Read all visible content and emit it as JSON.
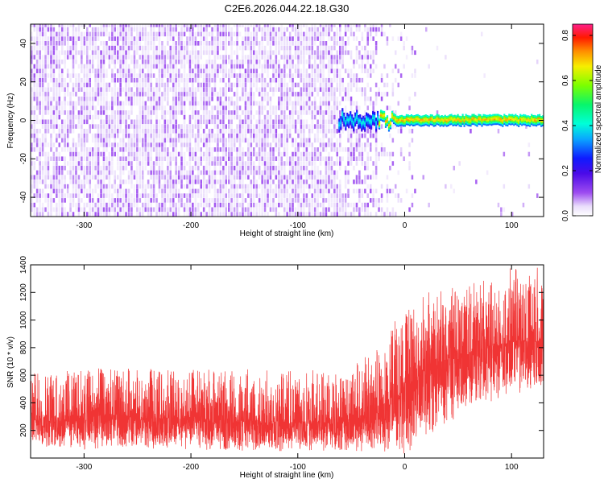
{
  "title": "C2E6.2026.044.22.18.G30",
  "chart_data": [
    {
      "type": "heatmap",
      "xlabel": "Height of straight line (km)",
      "ylabel": "Frequency (Hz)",
      "xlim": [
        -350,
        130
      ],
      "ylim": [
        -50,
        50
      ],
      "x_ticks": [
        -300,
        -200,
        -100,
        0,
        100
      ],
      "x_tick_labels": [
        "-300",
        "-200",
        "-100",
        "0",
        "100"
      ],
      "y_ticks": [
        -40,
        -20,
        0,
        20,
        40
      ],
      "y_tick_labels": [
        "-40",
        "-20",
        "0",
        "20",
        "40"
      ],
      "colorbar": {
        "label": "Normalized spectral amplitude",
        "range": [
          0,
          0.85
        ],
        "ticks": [
          0,
          0.2,
          0.4,
          0.6,
          0.8
        ],
        "tick_labels": [
          "0.0",
          "0.2",
          "0.4",
          "0.6",
          "0.8"
        ],
        "colormap": "rainbow"
      },
      "regions": [
        {
          "x_range": [
            -350,
            -60
          ],
          "description": "broadband noise",
          "amplitude_range": [
            0.02,
            0.1
          ]
        },
        {
          "x_range": [
            -60,
            -25
          ],
          "description": "onset of narrow line near 0 Hz",
          "amplitude_range": [
            0.3,
            0.45
          ]
        },
        {
          "x_range": [
            -25,
            130
          ],
          "description": "narrow line near 0 Hz",
          "frequency_Hz": 0,
          "amplitude_range": [
            0.45,
            0.8
          ]
        }
      ],
      "grid": false
    },
    {
      "type": "line",
      "xlabel": "Height of straight line (km)",
      "ylabel": "SNR (10 * v/v)",
      "xlim": [
        -350,
        130
      ],
      "ylim": [
        0,
        1400
      ],
      "x_ticks": [
        -300,
        -200,
        -100,
        0,
        100
      ],
      "x_tick_labels": [
        "-300",
        "-200",
        "-100",
        "0",
        "100"
      ],
      "y_ticks": [
        200,
        400,
        600,
        800,
        1000,
        1200,
        1400
      ],
      "y_tick_labels": [
        "200",
        "400",
        "600",
        "800",
        "1000",
        "1200",
        "1400"
      ],
      "series_color": "#f03434",
      "envelope": {
        "x": [
          -350,
          -300,
          -250,
          -200,
          -150,
          -100,
          -60,
          -30,
          -10,
          0,
          20,
          50,
          80,
          100,
          130
        ],
        "y_low": [
          80,
          60,
          60,
          60,
          50,
          50,
          50,
          50,
          40,
          20,
          150,
          300,
          400,
          450,
          500
        ],
        "y_mid": [
          270,
          310,
          290,
          290,
          260,
          250,
          260,
          300,
          420,
          500,
          650,
          750,
          800,
          840,
          850
        ],
        "y_high": [
          620,
          650,
          650,
          640,
          650,
          630,
          650,
          760,
          1000,
          1050,
          1200,
          1250,
          1300,
          1380,
          1400
        ]
      },
      "grid": false
    }
  ]
}
